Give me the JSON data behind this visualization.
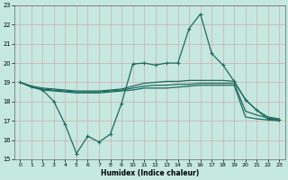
{
  "xlabel": "Humidex (Indice chaleur)",
  "xlim": [
    -0.5,
    23.5
  ],
  "ylim": [
    15,
    23
  ],
  "yticks": [
    15,
    16,
    17,
    18,
    19,
    20,
    21,
    22,
    23
  ],
  "xticks": [
    0,
    1,
    2,
    3,
    4,
    5,
    6,
    7,
    8,
    9,
    10,
    11,
    12,
    13,
    14,
    15,
    16,
    17,
    18,
    19,
    20,
    21,
    22,
    23
  ],
  "bg_color": "#c5e8e0",
  "line_color": "#1e6b60",
  "grid_color_v": "#d4a0a0",
  "grid_color_h": "#d4a0a0",
  "lines": [
    {
      "x": [
        0,
        1,
        2,
        3,
        4,
        5,
        6,
        7,
        8,
        9,
        10,
        11,
        12,
        13,
        14,
        15,
        16,
        17,
        18,
        19,
        20,
        21,
        22,
        23
      ],
      "y": [
        19.0,
        18.8,
        18.6,
        18.0,
        16.8,
        15.3,
        16.2,
        15.9,
        16.3,
        17.9,
        19.95,
        20.0,
        19.9,
        20.0,
        20.0,
        21.8,
        22.55,
        20.5,
        19.9,
        19.05,
        18.1,
        17.55,
        17.1,
        17.05
      ],
      "marker": "+",
      "lw": 0.9
    },
    {
      "x": [
        0,
        1,
        2,
        3,
        4,
        5,
        6,
        7,
        8,
        9,
        10,
        11,
        12,
        13,
        14,
        15,
        16,
        17,
        18,
        19,
        20,
        21,
        22,
        23
      ],
      "y": [
        19.0,
        18.75,
        18.6,
        18.55,
        18.5,
        18.45,
        18.45,
        18.45,
        18.5,
        18.55,
        18.6,
        18.7,
        18.7,
        18.7,
        18.75,
        18.8,
        18.85,
        18.85,
        18.85,
        18.85,
        17.2,
        17.1,
        17.05,
        17.0
      ],
      "marker": null,
      "lw": 0.9
    },
    {
      "x": [
        0,
        1,
        2,
        3,
        4,
        5,
        6,
        7,
        8,
        9,
        10,
        11,
        12,
        13,
        14,
        15,
        16,
        17,
        18,
        19,
        20,
        21,
        22,
        23
      ],
      "y": [
        19.0,
        18.75,
        18.65,
        18.6,
        18.55,
        18.5,
        18.5,
        18.5,
        18.55,
        18.6,
        18.7,
        18.8,
        18.85,
        18.85,
        18.9,
        18.9,
        18.95,
        18.95,
        18.95,
        18.95,
        17.5,
        17.3,
        17.15,
        17.05
      ],
      "marker": null,
      "lw": 0.9
    },
    {
      "x": [
        0,
        1,
        2,
        3,
        4,
        5,
        6,
        7,
        8,
        9,
        10,
        11,
        12,
        13,
        14,
        15,
        16,
        17,
        18,
        19,
        20,
        21,
        22,
        23
      ],
      "y": [
        19.0,
        18.8,
        18.7,
        18.65,
        18.6,
        18.55,
        18.55,
        18.55,
        18.6,
        18.65,
        18.8,
        18.95,
        19.0,
        19.05,
        19.05,
        19.1,
        19.1,
        19.1,
        19.1,
        19.05,
        18.1,
        17.55,
        17.2,
        17.1
      ],
      "marker": null,
      "lw": 0.9
    }
  ],
  "figsize": [
    3.2,
    2.0
  ],
  "dpi": 100
}
